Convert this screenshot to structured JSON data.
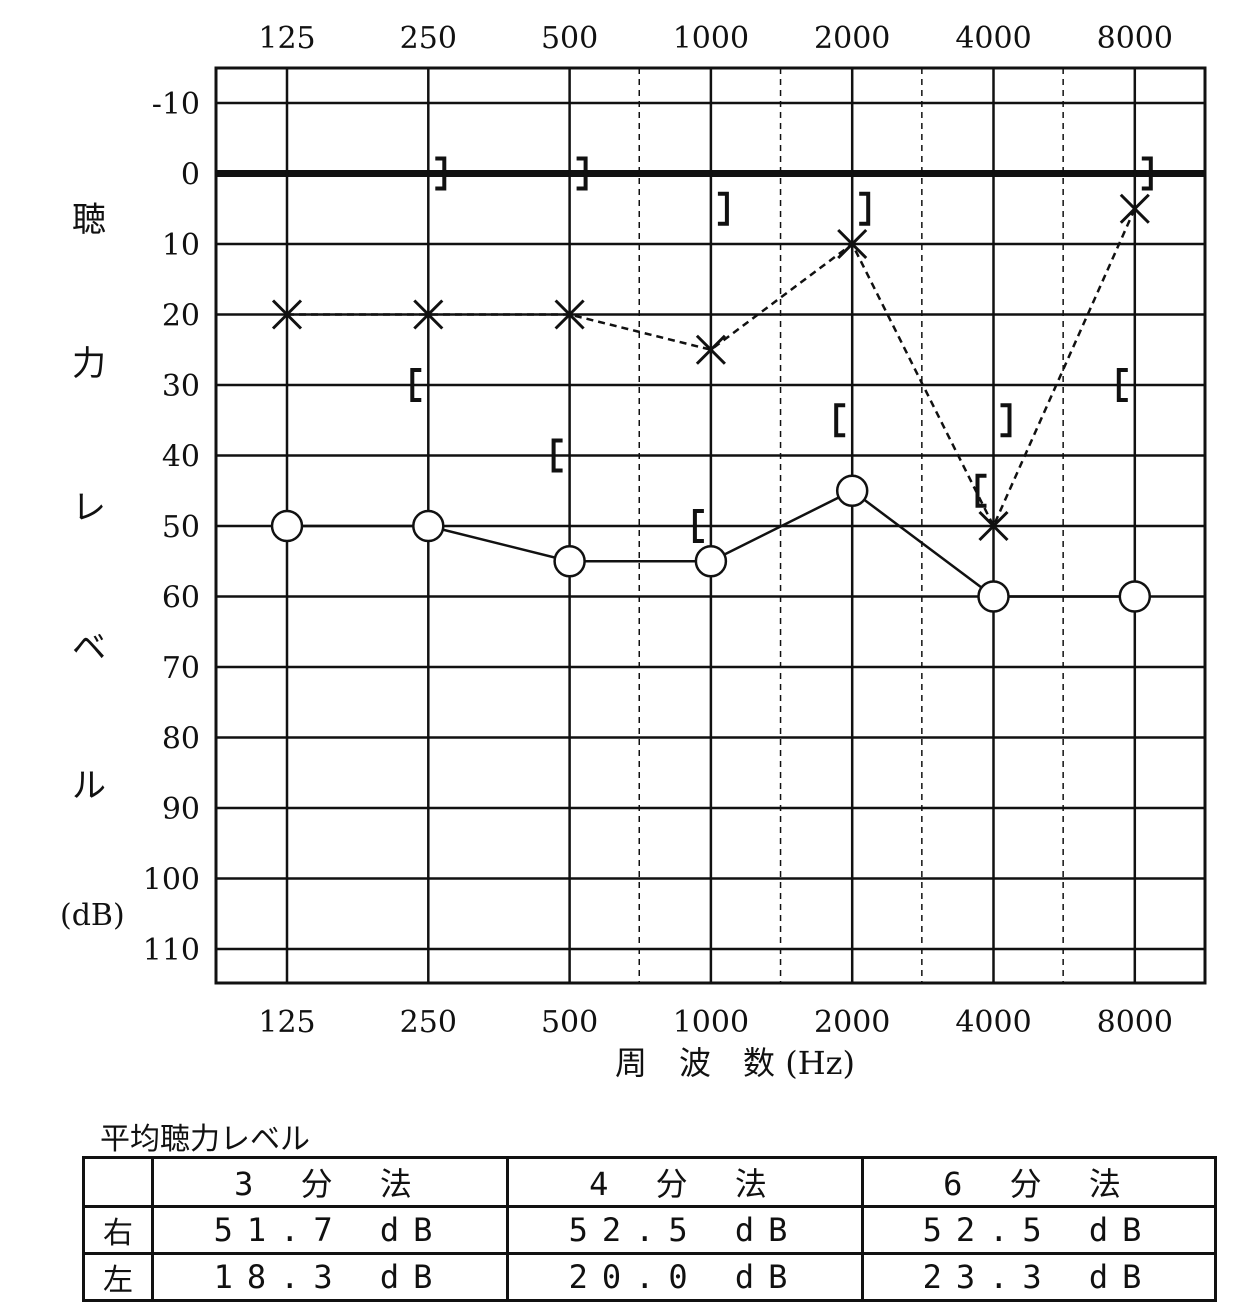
{
  "chart_data": {
    "type": "line",
    "x": [
      125,
      250,
      500,
      1000,
      2000,
      4000,
      8000
    ],
    "x_tick_labels": [
      "125",
      "250",
      "500",
      "1000",
      "2000",
      "4000",
      "8000"
    ],
    "y_tick_labels": [
      "-10",
      "0",
      "10",
      "20",
      "30",
      "40",
      "50",
      "60",
      "70",
      "80",
      "90",
      "100",
      "110"
    ],
    "ylim": [
      -15,
      115
    ],
    "y_inverted": true,
    "x_scale": "log",
    "ylabel": "聴力レベル",
    "ylabel_chars": [
      "聴",
      "力",
      "レ",
      "ベ",
      "ル"
    ],
    "yunit": "(dB)",
    "xlabel": "周　波　数 (Hz)",
    "grid": true,
    "series": [
      {
        "marker": "circle",
        "line": "solid",
        "values": [
          50,
          50,
          55,
          55,
          45,
          60,
          60
        ]
      },
      {
        "marker": "x",
        "line": "dashed",
        "values": [
          20,
          20,
          20,
          25,
          10,
          50,
          5
        ]
      }
    ],
    "bone_markers": [
      {
        "symbol": "]",
        "points": [
          [
            250,
            0
          ],
          [
            500,
            0
          ],
          [
            1000,
            5
          ],
          [
            2000,
            5
          ],
          [
            4000,
            35
          ],
          [
            8000,
            0
          ]
        ]
      },
      {
        "symbol": "[",
        "points": [
          [
            250,
            30
          ],
          [
            500,
            40
          ],
          [
            1000,
            50
          ],
          [
            2000,
            35
          ],
          [
            4000,
            45
          ],
          [
            8000,
            30
          ]
        ]
      }
    ]
  },
  "average": {
    "title": "平均聴力レベル",
    "headers": [
      "3 分 法",
      "4 分 法",
      "6 分 法"
    ],
    "rows": [
      {
        "side": "右",
        "values": [
          "51.7 dB",
          "52.5 dB",
          "52.5 dB"
        ]
      },
      {
        "side": "左",
        "values": [
          "18.3 dB",
          "20.0 dB",
          "23.3 dB"
        ]
      }
    ]
  }
}
